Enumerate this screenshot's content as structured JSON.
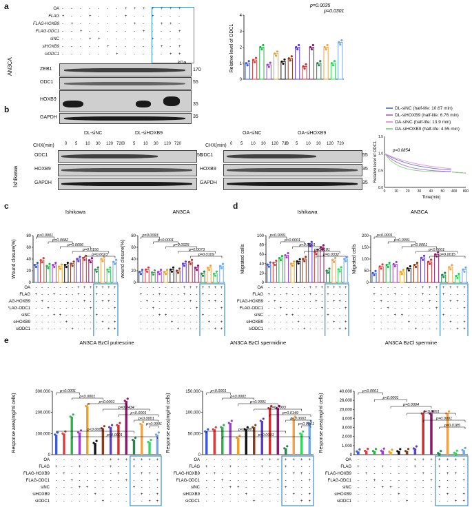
{
  "panels": {
    "a": "a",
    "b": "b",
    "c": "c",
    "d": "d",
    "e": "e"
  },
  "panel_a": {
    "cell_line": "AN3CA",
    "row_labels": [
      "OA",
      "FLAG",
      "FLAG-HOXB9",
      "FLAG-ODC1",
      "siNC",
      "siHOXB9",
      "siODC1"
    ],
    "blot_labels": [
      "ZEB1",
      "ODC1",
      "HOXB9",
      "GAPDH"
    ],
    "kda": "kDa",
    "mw": [
      "170",
      "55",
      "35",
      "35"
    ],
    "plot": {
      "ylabel": "Relative level of ODC1",
      "yticks": [
        "0",
        "1",
        "2",
        "3",
        "4"
      ],
      "p1": "p=0.0035",
      "p2": "p=0.0301"
    }
  },
  "panel_b": {
    "cell_line": "Ishikawa",
    "chx": "CHX(min)",
    "groups": [
      "DL-siNC",
      "DL-siHOXB9",
      "OA-siNC",
      "OA-siHOXB9"
    ],
    "times": [
      "0",
      "5",
      "10",
      "30",
      "120",
      "720"
    ],
    "blot_labels": [
      "ODC1",
      "HOXB9",
      "GAPDH"
    ],
    "mw": [
      "55",
      "35",
      "35"
    ],
    "legend": [
      {
        "label": "DL-siNC (half-life: 10.67 min)",
        "color": "#6f86d6"
      },
      {
        "label": "DL-siHOXB9 (half-life: 6.76 min)",
        "color": "#b07cd6"
      },
      {
        "label": "OA-siNC (half-life: 13.9 min)",
        "color": "#e89ad8"
      },
      {
        "label": "OA-siHOXB9 (half-life: 4.55 min)",
        "color": "#8fd48b"
      }
    ],
    "plot": {
      "ylabel": "Relative level of ODC1",
      "xlabel": "Time(min)",
      "p": "p=0.0854",
      "xticks": [
        "0",
        "10",
        "20",
        "30",
        "40",
        "50",
        "400",
        "800"
      ],
      "yticks": [
        "0.0",
        "0.5",
        "1.0",
        "1.5"
      ]
    }
  },
  "panel_c": {
    "titles": [
      "Ishikawa",
      "AN3CA"
    ],
    "ylabels": [
      "Wound closure(%)",
      "wound closure(%)"
    ],
    "yticks": [
      "0",
      "20",
      "40",
      "60",
      "80"
    ],
    "pvals_left": [
      "p<0.0001",
      "p=0.0082",
      "p=0.0096",
      "p=0.0156",
      "p=0.0023"
    ],
    "pvals_right": [
      "p=0.0093",
      "p<0.0001",
      "p=0.0025",
      "p=0.0073",
      "p=0.0109"
    ]
  },
  "panel_d": {
    "titles": [
      "Ishikawa",
      "AN3CA"
    ],
    "ylabels": [
      "Migrated cells",
      "Migrated cells"
    ],
    "yticks_left": [
      "0",
      "20",
      "40",
      "60",
      "80",
      "100"
    ],
    "yticks_right": [
      "0",
      "50",
      "100",
      "150",
      "200"
    ],
    "pvals_left": [
      "p<0.0001",
      "p<0.0001",
      "p<0.0001",
      "p=0.0181",
      "p=0.0332"
    ],
    "pvals_right": [
      "p<0.0001",
      "p<0.0001",
      "p<0.0001",
      "p<0.0001",
      "p=0.0015"
    ]
  },
  "panel_e": {
    "titles": [
      "AN3CA BzCl putrescine",
      "AN3CA BzCl spermidine",
      "AN3CA BzCl spermine"
    ],
    "ylabel": "Response area(mg/ml cells)",
    "yticks": [
      [
        "0",
        "100,000",
        "200,000",
        "300,000"
      ],
      [
        "0",
        "50,000",
        "100,000",
        "150,000"
      ],
      [
        "0",
        "1,000",
        "2,000",
        "3,000",
        "4,000",
        "20,000",
        "26,000",
        "40,000"
      ]
    ],
    "pvals": [
      [
        "p<0.0001",
        "p<0.0001",
        "p<0.0001",
        "p=0.0434",
        "p<0.0001",
        "p<0.0001",
        "p<0.0001",
        "p<0.0001",
        "p<0.0001"
      ],
      [
        "p<0.0001",
        "p<0.0001",
        "p<0.0001",
        "p=0.0003",
        "p=0.0149",
        "p<0.0001",
        "p<0.0001",
        "p<0.0001",
        "p<0.0001"
      ],
      [
        "p<0.0001",
        "p<0.0001",
        "p=0.0004",
        "p<0.0001",
        "p=0.0001",
        "p=0.0185"
      ]
    ]
  },
  "sign_rows": [
    [
      "-",
      "-",
      "-",
      "-",
      "-",
      "-",
      "-",
      "+",
      "+",
      "+",
      "+",
      "+",
      "+",
      "+"
    ],
    [
      "+",
      "-",
      "-",
      "+",
      "-",
      "-",
      "-",
      "+",
      "-",
      "-",
      "+",
      "-",
      "-",
      "-"
    ],
    [
      "-",
      "+",
      "-",
      "-",
      "-",
      "-",
      "-",
      "-",
      "+",
      "-",
      "-",
      "+",
      "+",
      "-"
    ],
    [
      "-",
      "-",
      "+",
      "-",
      "-",
      "-",
      "-",
      "-",
      "-",
      "+",
      "-",
      "-",
      "-",
      "+"
    ],
    [
      "-",
      "-",
      "-",
      "+",
      "+",
      "-",
      "-",
      "-",
      "-",
      "-",
      "+",
      "-",
      "-",
      "-"
    ],
    [
      "-",
      "-",
      "-",
      "-",
      "-",
      "+",
      "-",
      "-",
      "-",
      "-",
      "-",
      "+",
      "-",
      "+"
    ],
    [
      "-",
      "-",
      "-",
      "-",
      "-",
      "-",
      "+",
      "-",
      "-",
      "-",
      "-",
      "-",
      "+",
      "+"
    ]
  ],
  "chart_data": [
    {
      "type": "bar",
      "title": "",
      "ylabel": "Relative level of ODC1",
      "values": [
        1.0,
        1.2,
        2.0,
        0.9,
        1.6,
        1.1,
        1.3,
        2.0,
        0.8,
        2.0,
        1.0,
        2.0,
        1.0,
        2.3
      ],
      "ylim": [
        0,
        4
      ]
    },
    {
      "type": "bar",
      "title": "Ishikawa",
      "ylabel": "Wound closure(%)",
      "values": [
        30,
        38,
        28,
        30,
        27,
        30,
        32,
        40,
        42,
        38,
        22,
        40,
        22,
        35
      ],
      "ylim": [
        0,
        80
      ]
    },
    {
      "type": "bar",
      "title": "AN3CA",
      "ylabel": "wound closure(%)",
      "values": [
        18,
        22,
        17,
        18,
        18,
        22,
        20,
        32,
        35,
        25,
        15,
        25,
        15,
        28
      ],
      "ylim": [
        0,
        80
      ]
    },
    {
      "type": "bar",
      "title": "Ishikawa",
      "ylabel": "Migrated cells",
      "values": [
        38,
        42,
        52,
        58,
        40,
        45,
        50,
        82,
        65,
        75,
        25,
        48,
        28,
        50
      ],
      "ylim": [
        0,
        100
      ]
    },
    {
      "type": "bar",
      "title": "AN3CA",
      "ylabel": "Migrated cells",
      "values": [
        40,
        68,
        75,
        78,
        45,
        60,
        75,
        105,
        88,
        120,
        32,
        65,
        28,
        55
      ],
      "ylim": [
        0,
        200
      ]
    },
    {
      "type": "bar",
      "title": "AN3CA BzCl putrescine",
      "ylabel": "Response area(mg/ml cells)",
      "values": [
        95000,
        100000,
        180000,
        105000,
        230000,
        55000,
        125000,
        130000,
        140000,
        255000,
        70000,
        145000,
        60000,
        95000
      ],
      "ylim": [
        0,
        300000
      ]
    },
    {
      "type": "bar",
      "title": "AN3CA BzCl spermidine",
      "ylabel": "Response area(mg/ml cells)",
      "values": [
        55000,
        60000,
        65000,
        75000,
        40000,
        60000,
        65000,
        80000,
        110000,
        110000,
        15000,
        85000,
        50000,
        75000
      ],
      "ylim": [
        0,
        150000
      ]
    },
    {
      "type": "bar",
      "title": "AN3CA BzCl spermine",
      "ylabel": "Response area(mg/ml cells)",
      "values": [
        2000,
        2400,
        2300,
        2500,
        1800,
        2200,
        2300,
        3900,
        26000,
        26000,
        1000,
        26000,
        1200,
        2900
      ],
      "ylim": [
        0,
        40000
      ]
    }
  ],
  "colors": {
    "highlight": "#3a8fc8"
  }
}
